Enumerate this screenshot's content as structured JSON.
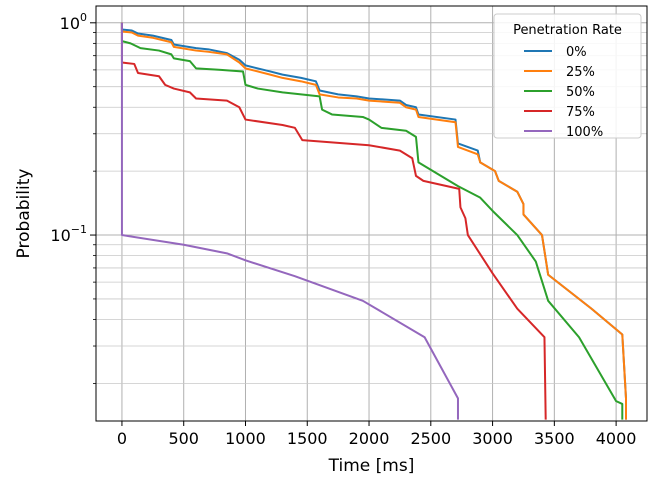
{
  "chart_data": {
    "type": "line",
    "xlabel": "Time [ms]",
    "ylabel": "Probability",
    "y_scale": "log",
    "xlim": [
      -210,
      4250
    ],
    "ylim": [
      0.0133,
      1.2
    ],
    "x_ticks": [
      0,
      500,
      1000,
      1500,
      2000,
      2500,
      3000,
      3500,
      4000
    ],
    "y_ticks": [
      {
        "value": 1,
        "base": "10",
        "exp": "0"
      },
      {
        "value": 0.1,
        "base": "10",
        "exp": "−1"
      }
    ],
    "grid": true,
    "legend": {
      "title": "Penetration Rate",
      "placement": "top-right"
    },
    "series": [
      {
        "name": "0%",
        "color": "#1f77b4",
        "points": [
          [
            0,
            1.0
          ],
          [
            0,
            0.93
          ],
          [
            80,
            0.92
          ],
          [
            130,
            0.89
          ],
          [
            250,
            0.87
          ],
          [
            400,
            0.83
          ],
          [
            420,
            0.79
          ],
          [
            600,
            0.76
          ],
          [
            700,
            0.75
          ],
          [
            850,
            0.72
          ],
          [
            950,
            0.67
          ],
          [
            1000,
            0.63
          ],
          [
            1200,
            0.59
          ],
          [
            1300,
            0.57
          ],
          [
            1450,
            0.55
          ],
          [
            1570,
            0.53
          ],
          [
            1600,
            0.48
          ],
          [
            1750,
            0.46
          ],
          [
            1900,
            0.45
          ],
          [
            2000,
            0.44
          ],
          [
            2250,
            0.43
          ],
          [
            2300,
            0.41
          ],
          [
            2380,
            0.4
          ],
          [
            2400,
            0.37
          ],
          [
            2700,
            0.35
          ],
          [
            2720,
            0.27
          ],
          [
            2880,
            0.25
          ],
          [
            2900,
            0.22
          ],
          [
            3020,
            0.2
          ],
          [
            3050,
            0.18
          ],
          [
            3200,
            0.16
          ],
          [
            3250,
            0.14
          ],
          [
            3250,
            0.125
          ],
          [
            3400,
            0.1
          ],
          [
            3450,
            0.065
          ],
          [
            3800,
            0.045
          ],
          [
            4050,
            0.034
          ],
          [
            4080,
            0.017
          ],
          [
            4080,
            0.0135
          ]
        ]
      },
      {
        "name": "25%",
        "color": "#ff7f0e",
        "points": [
          [
            0,
            1.0
          ],
          [
            0,
            0.91
          ],
          [
            80,
            0.9
          ],
          [
            130,
            0.87
          ],
          [
            250,
            0.85
          ],
          [
            400,
            0.81
          ],
          [
            420,
            0.77
          ],
          [
            600,
            0.74
          ],
          [
            700,
            0.73
          ],
          [
            850,
            0.71
          ],
          [
            950,
            0.65
          ],
          [
            1000,
            0.61
          ],
          [
            1200,
            0.57
          ],
          [
            1300,
            0.55
          ],
          [
            1450,
            0.53
          ],
          [
            1570,
            0.51
          ],
          [
            1600,
            0.46
          ],
          [
            1750,
            0.445
          ],
          [
            1900,
            0.44
          ],
          [
            2000,
            0.43
          ],
          [
            2250,
            0.42
          ],
          [
            2300,
            0.4
          ],
          [
            2380,
            0.39
          ],
          [
            2400,
            0.36
          ],
          [
            2700,
            0.34
          ],
          [
            2720,
            0.26
          ],
          [
            2880,
            0.24
          ],
          [
            2900,
            0.22
          ],
          [
            3020,
            0.2
          ],
          [
            3050,
            0.18
          ],
          [
            3200,
            0.16
          ],
          [
            3250,
            0.14
          ],
          [
            3250,
            0.125
          ],
          [
            3400,
            0.1
          ],
          [
            3450,
            0.065
          ],
          [
            3800,
            0.045
          ],
          [
            4050,
            0.034
          ],
          [
            4080,
            0.017
          ],
          [
            4080,
            0.0135
          ]
        ]
      },
      {
        "name": "50%",
        "color": "#2ca02c",
        "points": [
          [
            0,
            1.0
          ],
          [
            0,
            0.82
          ],
          [
            70,
            0.8
          ],
          [
            150,
            0.76
          ],
          [
            300,
            0.74
          ],
          [
            400,
            0.71
          ],
          [
            420,
            0.68
          ],
          [
            550,
            0.66
          ],
          [
            600,
            0.61
          ],
          [
            800,
            0.6
          ],
          [
            980,
            0.59
          ],
          [
            1000,
            0.51
          ],
          [
            1100,
            0.49
          ],
          [
            1300,
            0.47
          ],
          [
            1600,
            0.45
          ],
          [
            1620,
            0.39
          ],
          [
            1700,
            0.37
          ],
          [
            1950,
            0.36
          ],
          [
            2000,
            0.35
          ],
          [
            2100,
            0.32
          ],
          [
            2300,
            0.31
          ],
          [
            2380,
            0.29
          ],
          [
            2400,
            0.22
          ],
          [
            2720,
            0.17
          ],
          [
            2900,
            0.15
          ],
          [
            3000,
            0.13
          ],
          [
            3200,
            0.1
          ],
          [
            3350,
            0.075
          ],
          [
            3450,
            0.049
          ],
          [
            3700,
            0.033
          ],
          [
            4000,
            0.0165
          ],
          [
            4050,
            0.016
          ],
          [
            4050,
            0.0135
          ]
        ]
      },
      {
        "name": "75%",
        "color": "#d62728",
        "points": [
          [
            0,
            1.0
          ],
          [
            0,
            0.65
          ],
          [
            100,
            0.64
          ],
          [
            130,
            0.58
          ],
          [
            300,
            0.56
          ],
          [
            350,
            0.51
          ],
          [
            420,
            0.49
          ],
          [
            550,
            0.47
          ],
          [
            600,
            0.44
          ],
          [
            850,
            0.43
          ],
          [
            950,
            0.4
          ],
          [
            1000,
            0.35
          ],
          [
            1300,
            0.33
          ],
          [
            1400,
            0.32
          ],
          [
            1460,
            0.28
          ],
          [
            2000,
            0.265
          ],
          [
            2250,
            0.25
          ],
          [
            2350,
            0.23
          ],
          [
            2380,
            0.19
          ],
          [
            2440,
            0.18
          ],
          [
            2730,
            0.165
          ],
          [
            2740,
            0.135
          ],
          [
            2780,
            0.12
          ],
          [
            2800,
            0.1
          ],
          [
            3000,
            0.066
          ],
          [
            3200,
            0.045
          ],
          [
            3420,
            0.033
          ],
          [
            3430,
            0.0135
          ]
        ]
      },
      {
        "name": "100%",
        "color": "#9467bd",
        "points": [
          [
            0,
            1.0
          ],
          [
            0,
            0.1
          ],
          [
            500,
            0.09
          ],
          [
            850,
            0.082
          ],
          [
            1000,
            0.076
          ],
          [
            1400,
            0.064
          ],
          [
            1950,
            0.049
          ],
          [
            2450,
            0.033
          ],
          [
            2720,
            0.017
          ],
          [
            2720,
            0.0135
          ]
        ]
      }
    ]
  }
}
